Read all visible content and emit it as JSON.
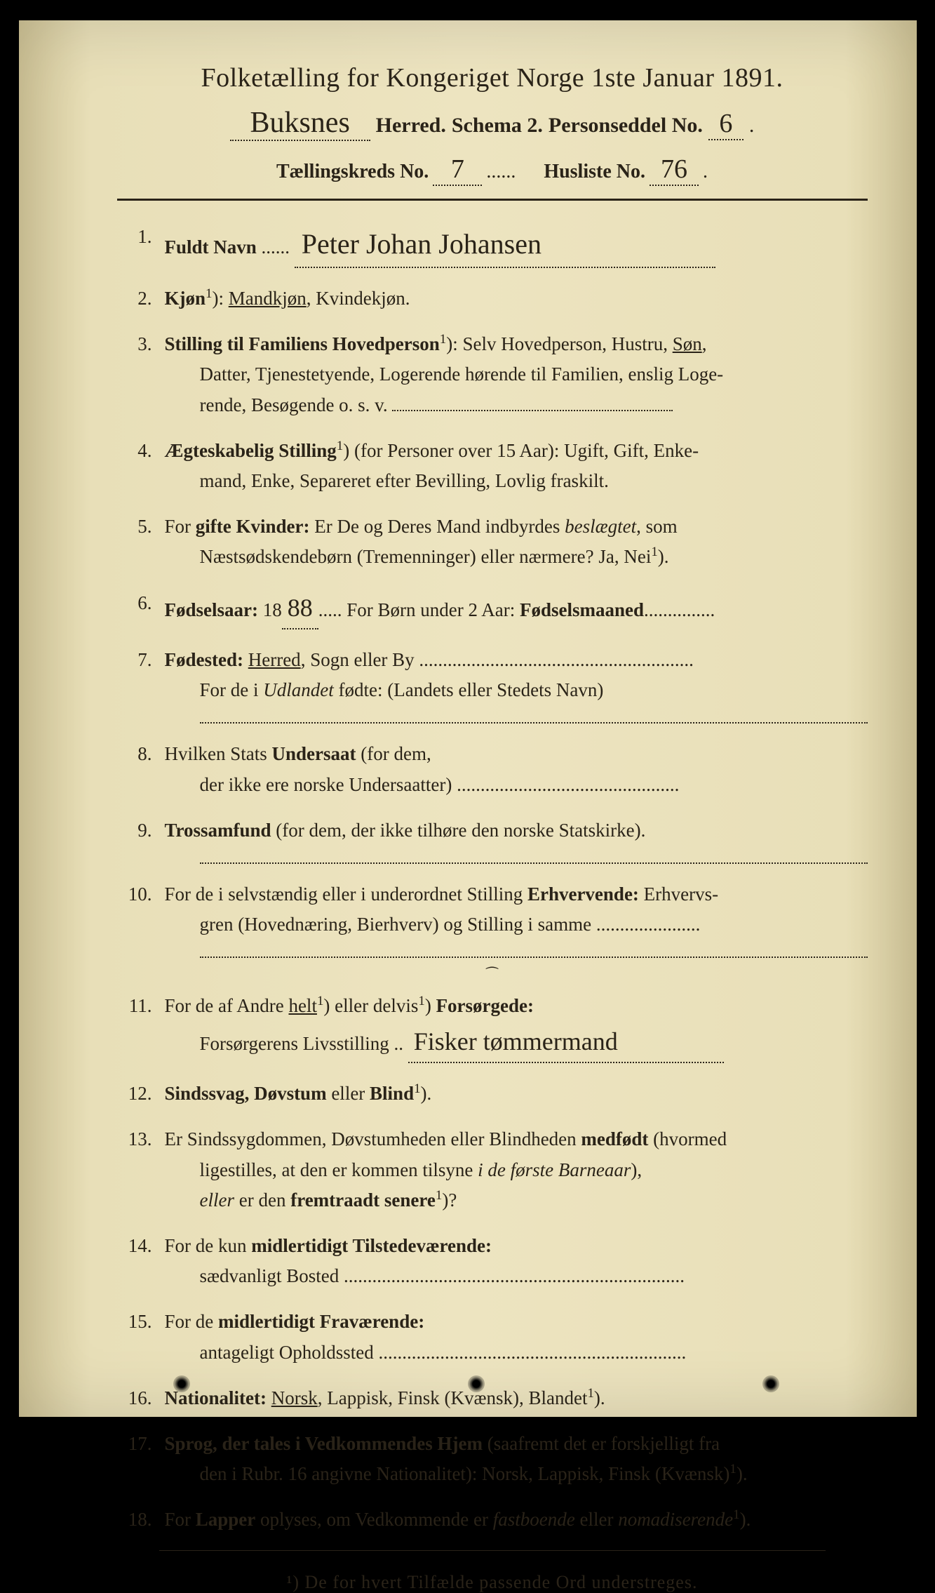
{
  "header": {
    "title": "Folketælling for Kongeriget Norge 1ste Januar 1891.",
    "herred_handwritten": "Buksnes",
    "herred_label": "Herred.",
    "schema_label": "Schema 2.",
    "personseddel_label": "Personseddel No.",
    "personseddel_no": "6",
    "taellingskreds_label": "Tællingskreds No.",
    "taellingskreds_no": "7",
    "husliste_label": "Husliste No.",
    "husliste_no": "76"
  },
  "items": {
    "1": {
      "num": "1.",
      "label": "Fuldt Navn",
      "value": "Peter Johan Johansen"
    },
    "2": {
      "num": "2.",
      "label_html": "<span class='label'>Kjøn</span><span class='sup'>1</span>): <span class='underline'>Mandkjøn</span>, Kvindekjøn."
    },
    "3": {
      "num": "3.",
      "label_html": "<span class='label'>Stilling til Familiens Hovedperson</span><span class='sup'>1</span>): Selv Hovedperson, Hustru, <span class='underline'>Søn</span>,",
      "line2": "Datter, Tjenestetyende, Logerende hørende til Familien, enslig Loge-",
      "line3": "rende, Besøgende o. s. v."
    },
    "4": {
      "num": "4.",
      "label_html": "<span class='label'>Ægteskabelig Stilling</span><span class='sup'>1</span>) (for Personer over 15 Aar): Ugift, Gift, Enke-",
      "line2": "mand, Enke, Separeret efter Bevilling, Lovlig fraskilt."
    },
    "5": {
      "num": "5.",
      "label_html": "For <span class='label'>gifte Kvinder:</span> Er De og Deres Mand indbyrdes <em>beslægtet</em>, som",
      "line2_html": "Næstsødskendebørn (Tremenninger) eller nærmere? Ja, Nei<span class='sup'>1</span>)."
    },
    "6": {
      "num": "6.",
      "label_html": "<span class='label'>Fødselsaar:</span> 18<span class='handwritten-inline'>88</span>..... For Børn under 2 Aar: <span class='label'>Fødselsmaaned</span>..............."
    },
    "7": {
      "num": "7.",
      "label_html": "<span class='label'>Fødested:</span> <span class='underline'>Herred</span>, Sogn eller By ..........................................................",
      "line2_html": "For de i <em>Udlandet</em> fødte: (Landets eller Stedets Navn)"
    },
    "8": {
      "num": "8.",
      "label_html": "Hvilken Stats <span class='label'>Undersaat</span> (for dem,",
      "line2": "der ikke ere norske Undersaatter) ..............................................."
    },
    "9": {
      "num": "9.",
      "label_html": "<span class='label'>Trossamfund</span> (for dem, der ikke tilhøre den norske Statskirke)."
    },
    "10": {
      "num": "10.",
      "label_html": "For de i selvstændig eller i underordnet Stilling <span class='label'>Erhvervende:</span> Erhvervs-",
      "line2": "gren (Hovednæring, Bierhverv) og Stilling i samme ......................"
    },
    "11": {
      "num": "11.",
      "label_html": "For de af Andre <span class='underline'>helt</span><span class='sup'>1</span>) eller delvis<span class='sup'>1</span>) <span class='label'>Forsørgede:</span>",
      "line2_html": "Forsørgerens Livsstilling .. <span class='handwritten-inline' style='min-width:450px'>Fisker tømmermand</span>"
    },
    "12": {
      "num": "12.",
      "label_html": "<span class='label'>Sindssvag, Døvstum</span> eller <span class='label'>Blind</span><span class='sup'>1</span>)."
    },
    "13": {
      "num": "13.",
      "label_html": "Er Sindssygdommen, Døvstumheden eller Blindheden <span class='label'>medfødt</span> (hvormed",
      "line2_html": "ligestilles, at den er kommen tilsyne <em>i de første Barneaar</em>),",
      "line3_html": "<em>eller</em> er den <span class='label'>fremtraadt senere</span><span class='sup'>1</span>)?"
    },
    "14": {
      "num": "14.",
      "label_html": "For de kun <span class='label'>midlertidigt Tilstedeværende:</span>",
      "line2": "sædvanligt Bosted ........................................................................"
    },
    "15": {
      "num": "15.",
      "label_html": "For de <span class='label'>midlertidigt Fraværende:</span>",
      "line2": "antageligt Opholdssted ................................................................."
    },
    "16": {
      "num": "16.",
      "label_html": "<span class='label'>Nationalitet:</span> <span class='underline'>Norsk</span>, Lappisk, Finsk (Kvænsk), Blandet<span class='sup'>1</span>)."
    },
    "17": {
      "num": "17.",
      "label_html": "<span class='label'>Sprog, der tales i Vedkommendes Hjem</span> (saafremt det er forskjelligt fra",
      "line2_html": "den i Rubr. 16 angivne Nationalitet): Norsk, Lappisk, Finsk (Kvænsk)<span class='sup'>1</span>)."
    },
    "18": {
      "num": "18.",
      "label_html": "For <span class='label'>Lapper</span> oplyses, om Vedkommende er <em>fastboende</em> eller <em>nomadiserende</em><span class='sup'>1</span>)."
    }
  },
  "footnote": "¹) De for hvert Tilfælde passende Ord understreges."
}
